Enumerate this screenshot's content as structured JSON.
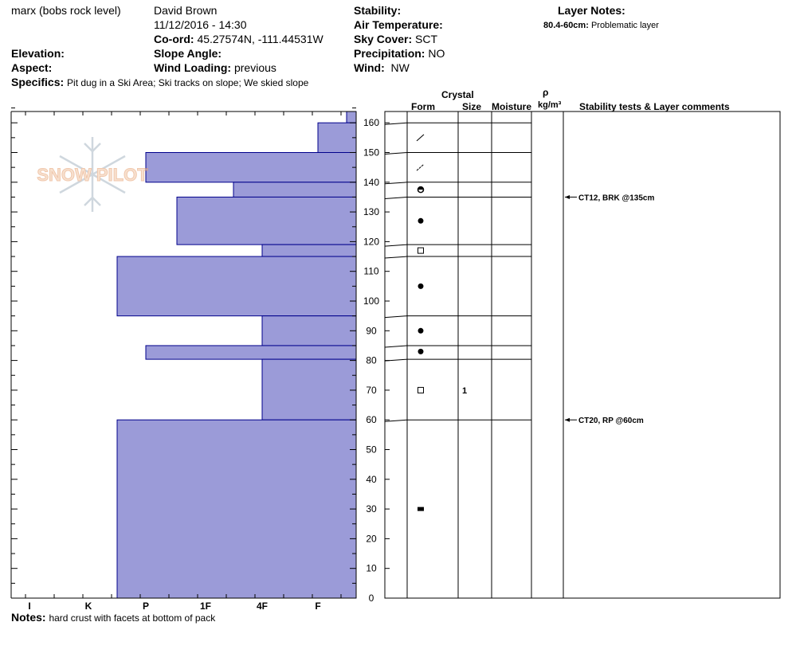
{
  "header": {
    "location": "marx (bobs rock level)",
    "observer": "David Brown",
    "datetime": "11/12/2016 - 14:30",
    "coord_label": "Co-ord:",
    "coord_value": "45.27574N, -111.44531W",
    "elevation_label": "Elevation:",
    "aspect_label": "Aspect:",
    "slope_label": "Slope Angle:",
    "wind_loading_label": "Wind Loading:",
    "wind_loading_value": "previous",
    "specifics_label": "Specifics:",
    "specifics_value": "Pit dug in a Ski Area; Ski tracks on slope; We skied slope",
    "stability_label": "Stability:",
    "air_temp_label": "Air Temperature:",
    "sky_label": "Sky Cover:",
    "sky_value": "SCT",
    "precip_label": "Precipitation:",
    "precip_value": "NO",
    "wind_label": "Wind:",
    "wind_value": "NW",
    "layer_notes_label": "Layer Notes:",
    "layer_note_range": "80.4-60cm:",
    "layer_note_text": "Problematic layer"
  },
  "logo_text": "SNOW PILOT",
  "columns": {
    "crystal": "Crystal",
    "form": "Form",
    "size": "Size",
    "moisture": "Moisture",
    "rho": "ρ",
    "density": "kg/m³",
    "stability": "Stability tests & Layer comments"
  },
  "notes_label": "Notes:",
  "notes_value": "hard crust with facets at bottom of pack",
  "chart_data": {
    "type": "bar",
    "orientation": "horizontal",
    "title": "",
    "ylim": [
      0,
      165
    ],
    "y_ticks": [
      0,
      10,
      20,
      30,
      40,
      50,
      60,
      70,
      80,
      90,
      100,
      110,
      120,
      130,
      140,
      150,
      160
    ],
    "hardness_categories": [
      "I",
      "K",
      "P",
      "1F",
      "4F",
      "F"
    ],
    "bar_color": "#9b9bd8",
    "layers": [
      {
        "top": 165,
        "bottom": 160,
        "hardness": "F-"
      },
      {
        "top": 160,
        "bottom": 150,
        "hardness": "F"
      },
      {
        "top": 150,
        "bottom": 140,
        "hardness": "P"
      },
      {
        "top": 140,
        "bottom": 135,
        "hardness": "4F+"
      },
      {
        "top": 135,
        "bottom": 119,
        "hardness": "1F+"
      },
      {
        "top": 119,
        "bottom": 115,
        "hardness": "4F"
      },
      {
        "top": 115,
        "bottom": 95,
        "hardness": "P+"
      },
      {
        "top": 95,
        "bottom": 85,
        "hardness": "4F"
      },
      {
        "top": 85,
        "bottom": 80.4,
        "hardness": "P"
      },
      {
        "top": 80.4,
        "bottom": 60,
        "hardness": "4F"
      },
      {
        "top": 60,
        "bottom": 0,
        "hardness": "K-"
      }
    ],
    "crystal_forms": [
      {
        "height": 155,
        "form": "DF"
      },
      {
        "height": 145,
        "form": "DF"
      },
      {
        "height": 137.5,
        "form": "MFcr"
      },
      {
        "height": 127,
        "form": "RG"
      },
      {
        "height": 117,
        "form": "FC"
      },
      {
        "height": 105,
        "form": "RG"
      },
      {
        "height": 90,
        "form": "RG"
      },
      {
        "height": 83,
        "form": "RG"
      },
      {
        "height": 70,
        "form": "FC",
        "size": "1"
      },
      {
        "height": 30,
        "form": "MF crust"
      }
    ],
    "stability_tests": [
      {
        "height": 135,
        "label": "CT12, BRK @135cm"
      },
      {
        "height": 60,
        "label": "CT20, RP @60cm"
      }
    ]
  }
}
